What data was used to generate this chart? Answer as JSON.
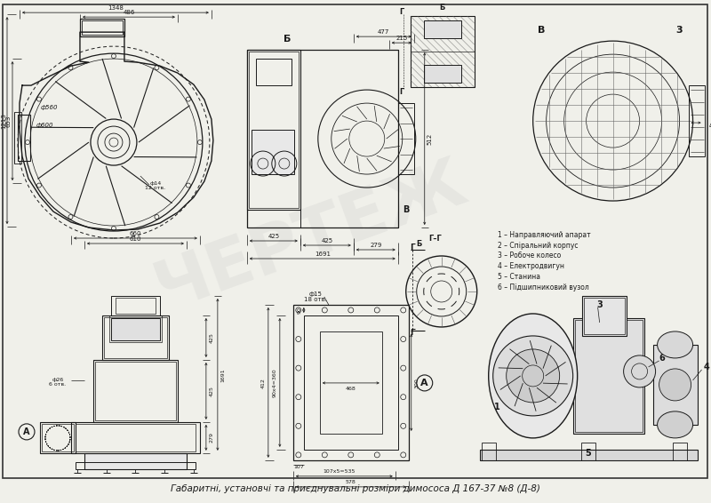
{
  "title": "Габаритні, установчі та приєднувальні розміри димососа Д 167-37 №8 (Д-8)",
  "bg_color": "#f0f0ea",
  "line_color": "#1a1a1a",
  "legend_items": [
    "1 – Направляючий апарат",
    "2 – Спіральний корпус",
    "3 – Робоче колесо",
    "4 – Електродвигун",
    "5 – Станина",
    "6 – Підшипниковий вузол"
  ]
}
